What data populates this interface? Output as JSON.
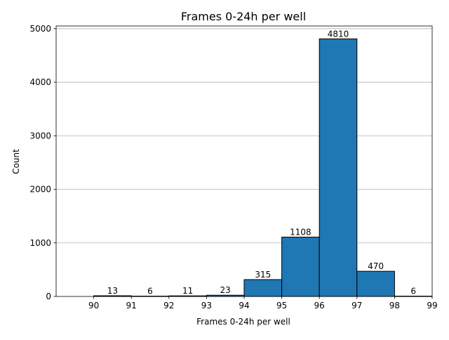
{
  "chart_data": {
    "type": "bar",
    "title": "Frames 0-24h per well",
    "xlabel": "Frames 0-24h per well",
    "ylabel": "Count",
    "bins": [
      {
        "start": 90,
        "end": 91,
        "value": 13,
        "label": "13"
      },
      {
        "start": 91,
        "end": 92,
        "value": 6,
        "label": "6"
      },
      {
        "start": 92,
        "end": 93,
        "value": 11,
        "label": "11"
      },
      {
        "start": 93,
        "end": 94,
        "value": 23,
        "label": "23"
      },
      {
        "start": 94,
        "end": 95,
        "value": 315,
        "label": "315"
      },
      {
        "start": 95,
        "end": 96,
        "value": 1108,
        "label": "1108"
      },
      {
        "start": 96,
        "end": 97,
        "value": 4810,
        "label": "4810"
      },
      {
        "start": 97,
        "end": 98,
        "value": 470,
        "label": "470"
      },
      {
        "start": 98,
        "end": 99,
        "value": 6,
        "label": "6"
      }
    ],
    "xlim": [
      89,
      99
    ],
    "ylim": [
      0,
      5050
    ],
    "xticks": [
      "90",
      "91",
      "92",
      "93",
      "94",
      "95",
      "96",
      "97",
      "98",
      "99"
    ],
    "yticks": [
      "0",
      "1000",
      "2000",
      "3000",
      "4000",
      "5000"
    ],
    "grid": "y",
    "legend": "none",
    "colors": {
      "bar": "#1f77b4",
      "edge": "#000000",
      "grid": "#b0b0b0"
    }
  }
}
